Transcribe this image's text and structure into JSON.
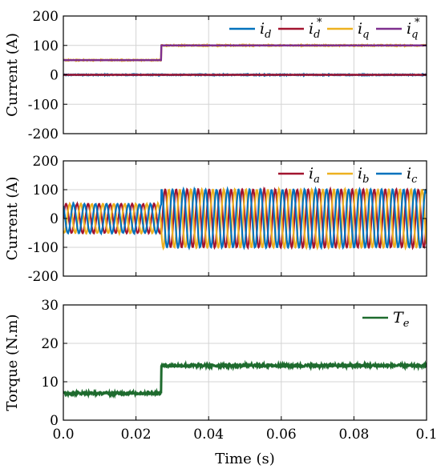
{
  "chart_data": [
    {
      "type": "line",
      "panel": "dq-currents",
      "ylabel": "Current (A)",
      "xlim": [
        0,
        0.1
      ],
      "ylim": [
        -200,
        200
      ],
      "yticks": [
        -200,
        -100,
        0,
        100,
        200
      ],
      "xticks": [
        0,
        0.02,
        0.04,
        0.06,
        0.08,
        0.1
      ],
      "grid": true,
      "legend_position": "top-right",
      "step_time": 0.027,
      "series": [
        {
          "name": "i",
          "subscript": "d",
          "superscript": "",
          "color": "#0072BD",
          "x": [
            0,
            0.027,
            0.1
          ],
          "y": [
            0,
            0,
            0
          ],
          "noise": 1.5
        },
        {
          "name": "i",
          "subscript": "d",
          "superscript": "*",
          "color": "#A2142F",
          "x": [
            0,
            0.027,
            0.1
          ],
          "y": [
            0,
            0,
            0
          ],
          "noise": 0
        },
        {
          "name": "i",
          "subscript": "q",
          "superscript": "",
          "color": "#EDB120",
          "x": [
            0,
            0.027,
            0.027,
            0.1
          ],
          "y": [
            50,
            50,
            100,
            100
          ],
          "noise": 1.5
        },
        {
          "name": "i",
          "subscript": "q",
          "superscript": "*",
          "color": "#7E2F8E",
          "x": [
            0,
            0.027,
            0.027,
            0.1
          ],
          "y": [
            50,
            50,
            100,
            100
          ],
          "noise": 0
        }
      ]
    },
    {
      "type": "line",
      "panel": "abc-currents",
      "ylabel": "Current (A)",
      "xlim": [
        0,
        0.1
      ],
      "ylim": [
        -200,
        200
      ],
      "yticks": [
        -200,
        -100,
        0,
        100,
        200
      ],
      "xticks": [
        0,
        0.02,
        0.04,
        0.06,
        0.08,
        0.1
      ],
      "grid": true,
      "legend_position": "top-right",
      "amplitude_before": 50,
      "amplitude_after": 100,
      "step_time": 0.027,
      "frequency_hz": 330,
      "series": [
        {
          "name": "i",
          "subscript": "a",
          "color": "#A2142F",
          "phase_deg": 0
        },
        {
          "name": "i",
          "subscript": "b",
          "color": "#EDB120",
          "phase_deg": -120
        },
        {
          "name": "i",
          "subscript": "c",
          "color": "#0072BD",
          "phase_deg": 120
        }
      ]
    },
    {
      "type": "line",
      "panel": "torque",
      "ylabel": "Torque (N.m)",
      "xlabel": "Time (s)",
      "xlim": [
        0,
        0.1
      ],
      "ylim": [
        0,
        30
      ],
      "yticks": [
        0,
        10,
        20,
        30
      ],
      "xticks": [
        0,
        0.02,
        0.04,
        0.06,
        0.08,
        0.1
      ],
      "xticklabels": [
        "0.0",
        "0.02",
        "0.04",
        "0.06",
        "0.08",
        "0.1"
      ],
      "grid": true,
      "legend_position": "top-right",
      "series": [
        {
          "name": "T",
          "subscript": "e",
          "color": "#1E6B2E",
          "x": [
            0,
            0.027,
            0.027,
            0.1
          ],
          "y": [
            7,
            7,
            14.2,
            14.2
          ],
          "noise": 0.3
        }
      ]
    }
  ]
}
